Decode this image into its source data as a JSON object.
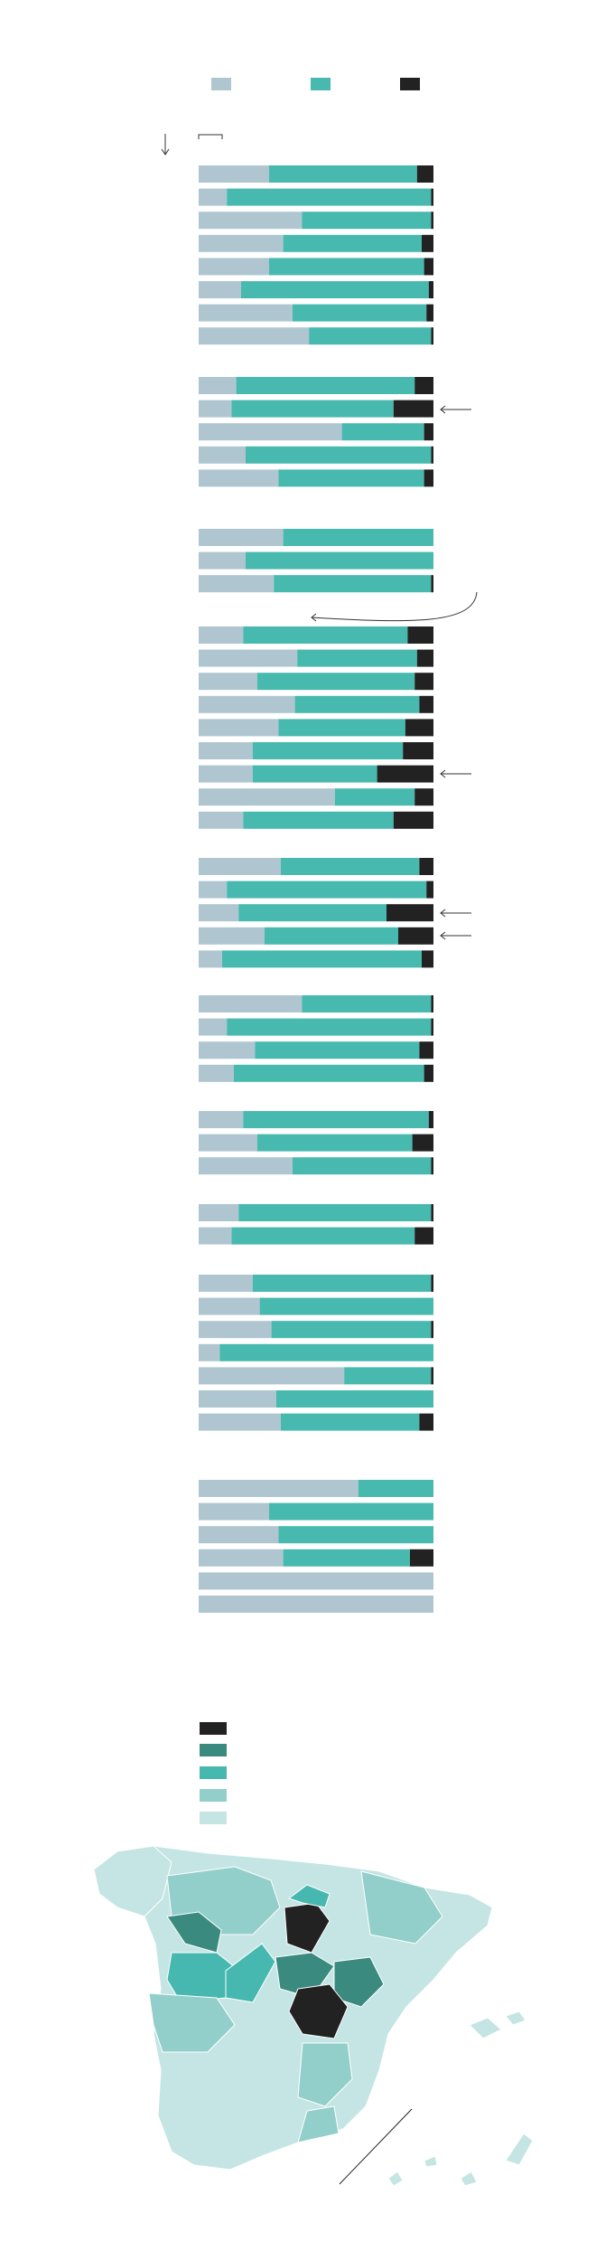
{
  "chart_data": [
    {
      "type": "bar",
      "orientation": "horizontal",
      "stacked": true,
      "xlim": [
        0,
        100
      ],
      "categories": [
        null,
        null,
        null,
        null,
        null,
        null,
        null,
        null
      ],
      "series": [
        {
          "color": "#afc6d1",
          "values": [
            30,
            12,
            44,
            36,
            30,
            18,
            40,
            47
          ]
        },
        {
          "color": "#47b9af",
          "values": [
            63,
            87,
            55,
            59,
            66,
            80,
            57,
            52
          ]
        },
        {
          "color": "#222222",
          "values": [
            7,
            1,
            1,
            5,
            4,
            2,
            3,
            1
          ]
        }
      ]
    },
    {
      "type": "bar",
      "orientation": "horizontal",
      "stacked": true,
      "xlim": [
        0,
        100
      ],
      "categories": [
        null,
        null,
        null,
        null,
        null
      ],
      "series": [
        {
          "color": "#afc6d1",
          "values": [
            16,
            14,
            61,
            20,
            34
          ]
        },
        {
          "color": "#47b9af",
          "values": [
            76,
            69,
            35,
            79,
            62
          ]
        },
        {
          "color": "#222222",
          "values": [
            8,
            17,
            4,
            1,
            4
          ]
        }
      ]
    },
    {
      "type": "bar",
      "orientation": "horizontal",
      "stacked": true,
      "xlim": [
        0,
        100
      ],
      "categories": [
        null,
        null,
        null
      ],
      "series": [
        {
          "color": "#afc6d1",
          "values": [
            36,
            20,
            32
          ]
        },
        {
          "color": "#47b9af",
          "values": [
            64,
            80,
            67
          ]
        },
        {
          "color": "#222222",
          "values": [
            0,
            0,
            1
          ]
        }
      ]
    },
    {
      "type": "bar",
      "orientation": "horizontal",
      "stacked": true,
      "xlim": [
        0,
        100
      ],
      "categories": [
        null,
        null,
        null,
        null,
        null,
        null,
        null,
        null,
        null
      ],
      "series": [
        {
          "color": "#afc6d1",
          "values": [
            19,
            42,
            25,
            41,
            34,
            23,
            23,
            58,
            19
          ]
        },
        {
          "color": "#47b9af",
          "values": [
            70,
            51,
            67,
            53,
            54,
            64,
            53,
            34,
            64
          ]
        },
        {
          "color": "#222222",
          "values": [
            11,
            7,
            8,
            6,
            12,
            13,
            24,
            8,
            17
          ]
        }
      ]
    },
    {
      "type": "bar",
      "orientation": "horizontal",
      "stacked": true,
      "xlim": [
        0,
        100
      ],
      "categories": [
        null,
        null,
        null,
        null,
        null
      ],
      "series": [
        {
          "color": "#afc6d1",
          "values": [
            35,
            12,
            17,
            28,
            10
          ]
        },
        {
          "color": "#47b9af",
          "values": [
            59,
            85,
            63,
            57,
            85
          ]
        },
        {
          "color": "#222222",
          "values": [
            6,
            3,
            20,
            15,
            5
          ]
        }
      ]
    },
    {
      "type": "bar",
      "orientation": "horizontal",
      "stacked": true,
      "xlim": [
        0,
        100
      ],
      "categories": [
        null,
        null,
        null,
        null
      ],
      "series": [
        {
          "color": "#afc6d1",
          "values": [
            44,
            12,
            24,
            15
          ]
        },
        {
          "color": "#47b9af",
          "values": [
            55,
            87,
            70,
            81
          ]
        },
        {
          "color": "#222222",
          "values": [
            1,
            1,
            6,
            4
          ]
        }
      ]
    },
    {
      "type": "bar",
      "orientation": "horizontal",
      "stacked": true,
      "xlim": [
        0,
        100
      ],
      "categories": [
        null,
        null,
        null
      ],
      "series": [
        {
          "color": "#afc6d1",
          "values": [
            19,
            25,
            40
          ]
        },
        {
          "color": "#47b9af",
          "values": [
            79,
            66,
            59
          ]
        },
        {
          "color": "#222222",
          "values": [
            2,
            9,
            1
          ]
        }
      ]
    },
    {
      "type": "bar",
      "orientation": "horizontal",
      "stacked": true,
      "xlim": [
        0,
        100
      ],
      "categories": [
        null,
        null
      ],
      "series": [
        {
          "color": "#afc6d1",
          "values": [
            17,
            14
          ]
        },
        {
          "color": "#47b9af",
          "values": [
            82,
            78
          ]
        },
        {
          "color": "#222222",
          "values": [
            1,
            8
          ]
        }
      ]
    },
    {
      "type": "bar",
      "orientation": "horizontal",
      "stacked": true,
      "xlim": [
        0,
        100
      ],
      "categories": [
        null,
        null,
        null,
        null,
        null,
        null,
        null
      ],
      "series": [
        {
          "color": "#afc6d1",
          "values": [
            23,
            26,
            31,
            9,
            62,
            33,
            35
          ]
        },
        {
          "color": "#47b9af",
          "values": [
            76,
            74,
            68,
            91,
            37,
            67,
            59
          ]
        },
        {
          "color": "#222222",
          "values": [
            1,
            0,
            1,
            0,
            1,
            0,
            6
          ]
        }
      ]
    },
    {
      "type": "bar",
      "orientation": "horizontal",
      "stacked": true,
      "xlim": [
        0,
        100
      ],
      "categories": [
        null,
        null,
        null,
        null,
        null,
        null
      ],
      "series": [
        {
          "color": "#afc6d1",
          "values": [
            68,
            30,
            34,
            36,
            100,
            100
          ]
        },
        {
          "color": "#47b9af",
          "values": [
            32,
            70,
            66,
            54,
            0,
            0
          ]
        },
        {
          "color": "#222222",
          "values": [
            0,
            0,
            0,
            10,
            0,
            0
          ]
        }
      ]
    }
  ]
}
